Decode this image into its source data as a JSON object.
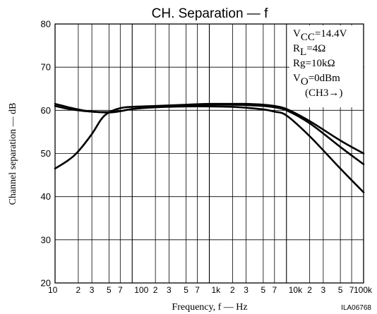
{
  "chart_data": {
    "type": "line",
    "title": "CH. Separation — f",
    "xlabel": "Frequency, f — Hz",
    "ylabel": "Channel separation — dB",
    "code": "ILA06768",
    "x_scale": "log",
    "xlim": [
      10,
      100000
    ],
    "ylim": [
      20,
      80
    ],
    "y_ticks": [
      20,
      30,
      40,
      50,
      60,
      70,
      80
    ],
    "x_tick_labels": [
      {
        "value": 10,
        "label": "10",
        "major": true
      },
      {
        "value": 20,
        "label": "2",
        "major": false
      },
      {
        "value": 30,
        "label": "3",
        "major": false
      },
      {
        "value": 50,
        "label": "5",
        "major": false
      },
      {
        "value": 70,
        "label": "7",
        "major": false
      },
      {
        "value": 100,
        "label": "100",
        "major": true
      },
      {
        "value": 200,
        "label": "2",
        "major": false
      },
      {
        "value": 300,
        "label": "3",
        "major": false
      },
      {
        "value": 500,
        "label": "5",
        "major": false
      },
      {
        "value": 700,
        "label": "7",
        "major": false
      },
      {
        "value": 1000,
        "label": "1k",
        "major": true
      },
      {
        "value": 2000,
        "label": "2",
        "major": false
      },
      {
        "value": 3000,
        "label": "3",
        "major": false
      },
      {
        "value": 5000,
        "label": "5",
        "major": false
      },
      {
        "value": 7000,
        "label": "7",
        "major": false
      },
      {
        "value": 10000,
        "label": "10k",
        "major": true
      },
      {
        "value": 20000,
        "label": "2",
        "major": false
      },
      {
        "value": 30000,
        "label": "3",
        "major": false
      },
      {
        "value": 50000,
        "label": "5",
        "major": false
      },
      {
        "value": 70000,
        "label": "7",
        "major": false
      },
      {
        "value": 100000,
        "label": "100k",
        "major": true
      }
    ],
    "grid": true,
    "conditions": [
      {
        "main": "V",
        "sub": "CC",
        "rest": "=14.4V"
      },
      {
        "main": "R",
        "sub": "L",
        "rest": "=4Ω"
      },
      {
        "main": "Rg",
        "sub": "",
        "rest": "=10kΩ"
      },
      {
        "main": "V",
        "sub": "O",
        "rest": "=0dBm"
      },
      {
        "main": "(CH3→)",
        "sub": "",
        "rest": ""
      }
    ],
    "series": [
      {
        "points": [
          [
            10,
            46.5
          ],
          [
            15,
            48.5
          ],
          [
            20,
            50.5
          ],
          [
            30,
            54.5
          ],
          [
            40,
            58
          ],
          [
            50,
            59.5
          ],
          [
            70,
            60.5
          ],
          [
            100,
            60.8
          ],
          [
            200,
            61
          ],
          [
            500,
            61.3
          ],
          [
            1000,
            61.5
          ],
          [
            2000,
            61.5
          ],
          [
            3000,
            61.5
          ],
          [
            5000,
            61.3
          ],
          [
            7000,
            61
          ],
          [
            10000,
            60.3
          ],
          [
            20000,
            57.5
          ],
          [
            50000,
            53
          ],
          [
            100000,
            50
          ]
        ]
      },
      {
        "points": [
          [
            10,
            61
          ],
          [
            15,
            60.3
          ],
          [
            20,
            60
          ],
          [
            30,
            59.7
          ],
          [
            50,
            59.5
          ],
          [
            70,
            59.8
          ],
          [
            100,
            60.3
          ],
          [
            200,
            60.8
          ],
          [
            500,
            61.2
          ],
          [
            1000,
            61.3
          ],
          [
            2000,
            61.3
          ],
          [
            3000,
            61.2
          ],
          [
            5000,
            61
          ],
          [
            7000,
            60.7
          ],
          [
            10000,
            60
          ],
          [
            20000,
            57
          ],
          [
            50000,
            51.5
          ],
          [
            100000,
            47.5
          ]
        ]
      },
      {
        "points": [
          [
            10,
            61.5
          ],
          [
            15,
            60.7
          ],
          [
            20,
            60.2
          ],
          [
            30,
            59.7
          ],
          [
            50,
            59.6
          ],
          [
            70,
            59.8
          ],
          [
            100,
            60.3
          ],
          [
            200,
            60.7
          ],
          [
            500,
            60.9
          ],
          [
            1000,
            60.9
          ],
          [
            2000,
            60.8
          ],
          [
            3000,
            60.6
          ],
          [
            5000,
            60.2
          ],
          [
            7000,
            59.7
          ],
          [
            10000,
            58.8
          ],
          [
            20000,
            54
          ],
          [
            50000,
            46.5
          ],
          [
            100000,
            41
          ]
        ]
      }
    ]
  }
}
